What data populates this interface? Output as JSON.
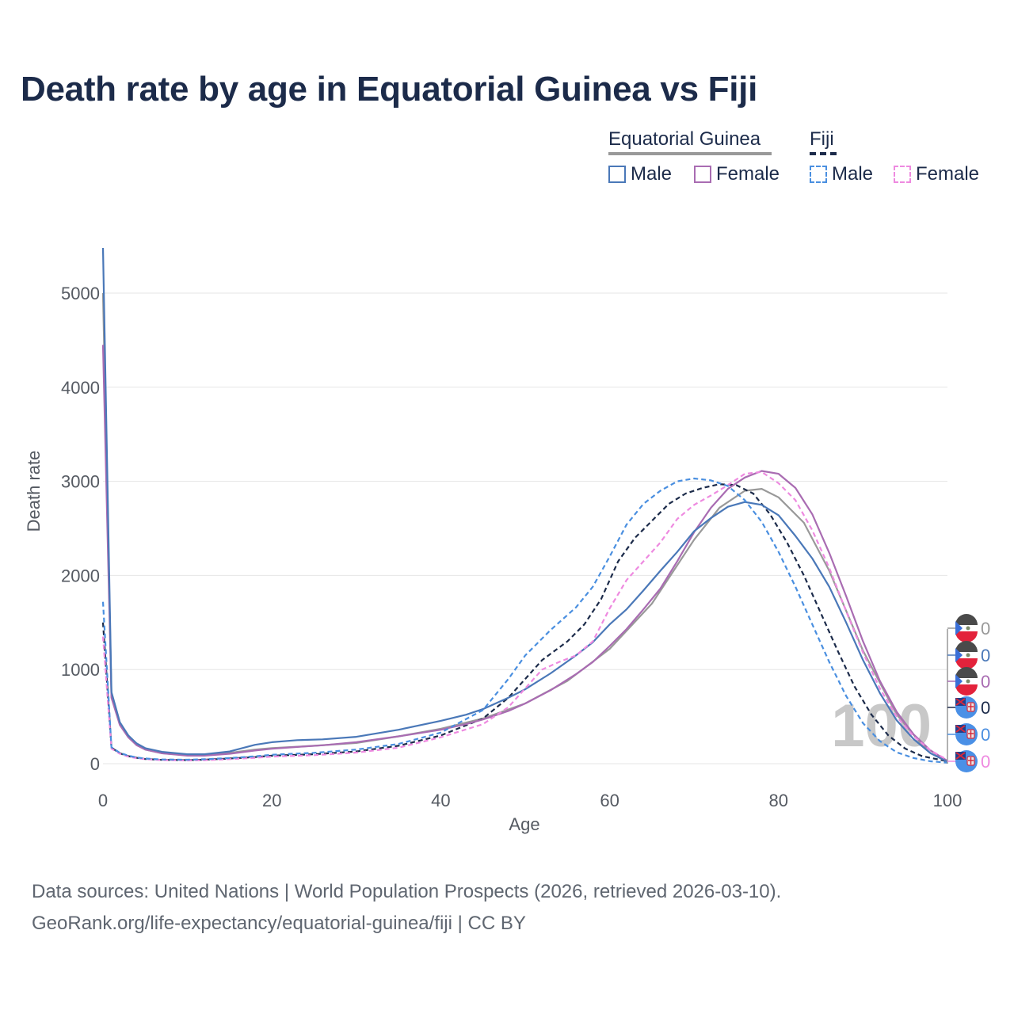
{
  "title": "Death rate by age in Equatorial Guinea vs Fiji",
  "legend": {
    "groups": [
      {
        "name": "Equatorial Guinea",
        "items": [
          "Male",
          "Female"
        ]
      },
      {
        "name": "Fiji",
        "items": [
          "Male",
          "Female"
        ]
      }
    ]
  },
  "footer": {
    "line1": "Data sources: United Nations | World Population Prospects (2026, retrieved 2026-03-10).",
    "line2": "GeoRank.org/life-expectancy/equatorial-guinea/fiji | CC BY"
  },
  "watermark": "100",
  "colors": {
    "eg_total": "#999999",
    "eg_male": "#4a78b8",
    "eg_female": "#a96cb2",
    "fj_total": "#1c2b4a",
    "fj_male": "#4a8fe0",
    "fj_female": "#ee8ae0",
    "grid": "#e6e6e6",
    "axis_text": "#555a62"
  },
  "end_labels": [
    {
      "series": "Equatorial Guinea total",
      "text": "0",
      "icon": "equatorial-guinea-flag-icon"
    },
    {
      "series": "Equatorial Guinea male",
      "text": "0",
      "icon": "equatorial-guinea-flag-icon"
    },
    {
      "series": "Equatorial Guinea female",
      "text": "0",
      "icon": "equatorial-guinea-flag-icon"
    },
    {
      "series": "Fiji total",
      "text": "0",
      "icon": "fiji-flag-icon"
    },
    {
      "series": "Fiji male",
      "text": "0",
      "icon": "fiji-flag-icon"
    },
    {
      "series": "Fiji female",
      "text": "0",
      "icon": "fiji-flag-icon"
    }
  ],
  "chart_data": {
    "type": "line",
    "title": "Death rate by age in Equatorial Guinea vs Fiji",
    "xlabel": "Age",
    "ylabel": "Death rate",
    "xlim": [
      0,
      100
    ],
    "ylim": [
      0,
      5500
    ],
    "xticks": [
      0,
      20,
      40,
      60,
      80,
      100
    ],
    "yticks": [
      0,
      1000,
      2000,
      3000,
      4000,
      5000
    ],
    "grid": true,
    "series": [
      {
        "name": "Equatorial Guinea Total",
        "key": "eg_total",
        "dashed": false,
        "points": [
          [
            0,
            5000
          ],
          [
            1,
            720
          ],
          [
            2,
            420
          ],
          [
            3,
            280
          ],
          [
            4,
            200
          ],
          [
            5,
            150
          ],
          [
            7,
            110
          ],
          [
            10,
            90
          ],
          [
            12,
            92
          ],
          [
            15,
            115
          ],
          [
            18,
            150
          ],
          [
            20,
            165
          ],
          [
            25,
            190
          ],
          [
            30,
            220
          ],
          [
            35,
            290
          ],
          [
            40,
            370
          ],
          [
            45,
            480
          ],
          [
            50,
            640
          ],
          [
            55,
            880
          ],
          [
            60,
            1220
          ],
          [
            65,
            1700
          ],
          [
            70,
            2380
          ],
          [
            73,
            2720
          ],
          [
            76,
            2900
          ],
          [
            78,
            2920
          ],
          [
            80,
            2830
          ],
          [
            83,
            2560
          ],
          [
            86,
            2050
          ],
          [
            90,
            1200
          ],
          [
            94,
            520
          ],
          [
            97,
            200
          ],
          [
            100,
            20
          ]
        ]
      },
      {
        "name": "Equatorial Guinea Male",
        "key": "eg_male",
        "dashed": false,
        "points": [
          [
            0,
            5480
          ],
          [
            1,
            760
          ],
          [
            2,
            440
          ],
          [
            3,
            300
          ],
          [
            4,
            215
          ],
          [
            5,
            165
          ],
          [
            7,
            125
          ],
          [
            10,
            100
          ],
          [
            12,
            100
          ],
          [
            15,
            130
          ],
          [
            18,
            200
          ],
          [
            20,
            228
          ],
          [
            23,
            250
          ],
          [
            26,
            258
          ],
          [
            30,
            285
          ],
          [
            35,
            360
          ],
          [
            40,
            455
          ],
          [
            43,
            520
          ],
          [
            45,
            580
          ],
          [
            48,
            700
          ],
          [
            50,
            790
          ],
          [
            53,
            960
          ],
          [
            56,
            1150
          ],
          [
            58,
            1290
          ],
          [
            60,
            1480
          ],
          [
            62,
            1640
          ],
          [
            64,
            1840
          ],
          [
            66,
            2050
          ],
          [
            68,
            2250
          ],
          [
            70,
            2470
          ],
          [
            72,
            2610
          ],
          [
            74,
            2730
          ],
          [
            76,
            2780
          ],
          [
            78,
            2750
          ],
          [
            80,
            2640
          ],
          [
            82,
            2420
          ],
          [
            84,
            2180
          ],
          [
            86,
            1880
          ],
          [
            88,
            1500
          ],
          [
            90,
            1100
          ],
          [
            92,
            750
          ],
          [
            94,
            460
          ],
          [
            96,
            260
          ],
          [
            98,
            110
          ],
          [
            100,
            20
          ]
        ]
      },
      {
        "name": "Equatorial Guinea Female",
        "key": "eg_female",
        "dashed": false,
        "points": [
          [
            0,
            4450
          ],
          [
            1,
            700
          ],
          [
            2,
            410
          ],
          [
            3,
            280
          ],
          [
            4,
            195
          ],
          [
            5,
            150
          ],
          [
            7,
            110
          ],
          [
            10,
            85
          ],
          [
            12,
            85
          ],
          [
            15,
            105
          ],
          [
            18,
            140
          ],
          [
            20,
            158
          ],
          [
            23,
            178
          ],
          [
            26,
            195
          ],
          [
            30,
            228
          ],
          [
            35,
            290
          ],
          [
            40,
            360
          ],
          [
            43,
            420
          ],
          [
            45,
            470
          ],
          [
            48,
            560
          ],
          [
            50,
            640
          ],
          [
            53,
            780
          ],
          [
            56,
            950
          ],
          [
            58,
            1080
          ],
          [
            60,
            1250
          ],
          [
            62,
            1430
          ],
          [
            64,
            1640
          ],
          [
            66,
            1860
          ],
          [
            68,
            2150
          ],
          [
            70,
            2460
          ],
          [
            72,
            2720
          ],
          [
            74,
            2920
          ],
          [
            76,
            3040
          ],
          [
            78,
            3110
          ],
          [
            80,
            3080
          ],
          [
            82,
            2930
          ],
          [
            84,
            2650
          ],
          [
            86,
            2240
          ],
          [
            88,
            1780
          ],
          [
            90,
            1300
          ],
          [
            92,
            880
          ],
          [
            94,
            550
          ],
          [
            96,
            310
          ],
          [
            98,
            140
          ],
          [
            100,
            30
          ]
        ]
      },
      {
        "name": "Fiji Total",
        "key": "fj_total",
        "dashed": true,
        "points": [
          [
            0,
            1500
          ],
          [
            1,
            170
          ],
          [
            2,
            110
          ],
          [
            3,
            80
          ],
          [
            4,
            62
          ],
          [
            5,
            50
          ],
          [
            7,
            40
          ],
          [
            10,
            38
          ],
          [
            12,
            42
          ],
          [
            15,
            55
          ],
          [
            18,
            70
          ],
          [
            20,
            85
          ],
          [
            25,
            100
          ],
          [
            30,
            130
          ],
          [
            35,
            190
          ],
          [
            40,
            300
          ],
          [
            45,
            480
          ],
          [
            48,
            700
          ],
          [
            50,
            900
          ],
          [
            52,
            1100
          ],
          [
            55,
            1300
          ],
          [
            57,
            1480
          ],
          [
            59,
            1750
          ],
          [
            61,
            2150
          ],
          [
            63,
            2400
          ],
          [
            65,
            2580
          ],
          [
            67,
            2760
          ],
          [
            69,
            2870
          ],
          [
            71,
            2930
          ],
          [
            73,
            2970
          ],
          [
            75,
            2960
          ],
          [
            77,
            2870
          ],
          [
            79,
            2650
          ],
          [
            81,
            2350
          ],
          [
            83,
            2000
          ],
          [
            85,
            1600
          ],
          [
            87,
            1200
          ],
          [
            89,
            820
          ],
          [
            91,
            520
          ],
          [
            93,
            300
          ],
          [
            95,
            160
          ],
          [
            97,
            80
          ],
          [
            100,
            25
          ]
        ]
      },
      {
        "name": "Fiji Male",
        "key": "fj_male",
        "dashed": true,
        "points": [
          [
            0,
            1720
          ],
          [
            1,
            175
          ],
          [
            2,
            115
          ],
          [
            3,
            85
          ],
          [
            4,
            66
          ],
          [
            5,
            55
          ],
          [
            7,
            45
          ],
          [
            10,
            42
          ],
          [
            12,
            47
          ],
          [
            15,
            60
          ],
          [
            18,
            78
          ],
          [
            20,
            95
          ],
          [
            25,
            115
          ],
          [
            30,
            150
          ],
          [
            35,
            210
          ],
          [
            40,
            330
          ],
          [
            45,
            570
          ],
          [
            48,
            900
          ],
          [
            50,
            1150
          ],
          [
            53,
            1420
          ],
          [
            56,
            1660
          ],
          [
            58,
            1880
          ],
          [
            60,
            2200
          ],
          [
            62,
            2540
          ],
          [
            64,
            2760
          ],
          [
            66,
            2900
          ],
          [
            68,
            3000
          ],
          [
            70,
            3030
          ],
          [
            72,
            3010
          ],
          [
            74,
            2950
          ],
          [
            76,
            2800
          ],
          [
            78,
            2570
          ],
          [
            80,
            2250
          ],
          [
            82,
            1880
          ],
          [
            84,
            1480
          ],
          [
            86,
            1080
          ],
          [
            88,
            720
          ],
          [
            90,
            430
          ],
          [
            92,
            240
          ],
          [
            94,
            120
          ],
          [
            96,
            60
          ],
          [
            98,
            25
          ],
          [
            100,
            10
          ]
        ]
      },
      {
        "name": "Fiji Female",
        "key": "fj_female",
        "dashed": true,
        "points": [
          [
            0,
            1350
          ],
          [
            1,
            160
          ],
          [
            2,
            105
          ],
          [
            3,
            75
          ],
          [
            4,
            58
          ],
          [
            5,
            48
          ],
          [
            7,
            38
          ],
          [
            10,
            34
          ],
          [
            12,
            37
          ],
          [
            15,
            48
          ],
          [
            18,
            62
          ],
          [
            20,
            75
          ],
          [
            25,
            90
          ],
          [
            30,
            118
          ],
          [
            35,
            170
          ],
          [
            40,
            280
          ],
          [
            45,
            420
          ],
          [
            48,
            600
          ],
          [
            50,
            800
          ],
          [
            52,
            1000
          ],
          [
            54,
            1080
          ],
          [
            56,
            1150
          ],
          [
            58,
            1300
          ],
          [
            60,
            1650
          ],
          [
            62,
            1950
          ],
          [
            64,
            2150
          ],
          [
            66,
            2350
          ],
          [
            68,
            2600
          ],
          [
            70,
            2750
          ],
          [
            72,
            2850
          ],
          [
            74,
            2960
          ],
          [
            76,
            3080
          ],
          [
            78,
            3100
          ],
          [
            80,
            2980
          ],
          [
            82,
            2800
          ],
          [
            84,
            2480
          ],
          [
            86,
            2080
          ],
          [
            88,
            1620
          ],
          [
            90,
            1180
          ],
          [
            92,
            800
          ],
          [
            94,
            500
          ],
          [
            96,
            290
          ],
          [
            98,
            140
          ],
          [
            100,
            40
          ]
        ]
      }
    ]
  }
}
